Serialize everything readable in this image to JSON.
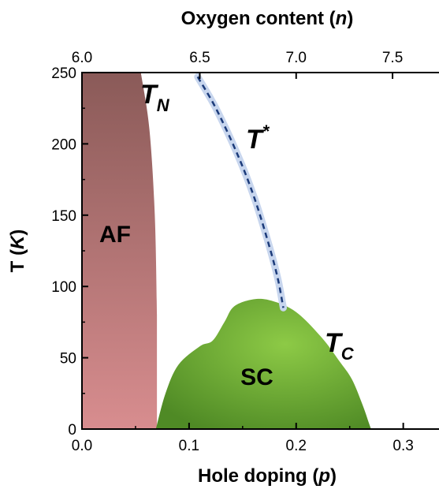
{
  "chart_data": {
    "type": "area",
    "xlabel": "Hole doping (p)",
    "x2label": "Oxygen content (n)",
    "ylabel": "T (K)",
    "xlim": [
      0.0,
      0.34
    ],
    "ylim": [
      0,
      250
    ],
    "x_ticks": [
      0.0,
      0.1,
      0.2,
      0.3
    ],
    "x_tick_labels": [
      "0.0",
      "0.1",
      "0.2",
      "0.3"
    ],
    "x2_ticks": [
      6.0,
      6.5,
      7.0,
      7.5
    ],
    "x2_tick_labels": [
      "6.0",
      "6.5",
      "7.0",
      "7.5"
    ],
    "x2_to_x": [
      [
        6.0,
        0.0
      ],
      [
        6.5,
        0.11
      ],
      [
        7.0,
        0.2
      ],
      [
        7.5,
        0.29
      ]
    ],
    "y_ticks": [
      0,
      50,
      100,
      150,
      200,
      250
    ],
    "y_tick_labels": [
      "0",
      "50",
      "100",
      "150",
      "200",
      "250"
    ],
    "grid": false,
    "regions": [
      {
        "name": "AF",
        "color_top": "#8a5a58",
        "color_bottom": "#d88d8f",
        "boundary": [
          [
            0.0,
            250
          ],
          [
            0.055,
            250
          ],
          [
            0.063,
            210
          ],
          [
            0.068,
            150
          ],
          [
            0.07,
            80
          ],
          [
            0.07,
            0
          ],
          [
            0.0,
            0
          ]
        ]
      },
      {
        "name": "SC",
        "color_light": "#8dca46",
        "color_dark": "#4f8a25",
        "boundary": [
          [
            0.069,
            0
          ],
          [
            0.078,
            25
          ],
          [
            0.09,
            45
          ],
          [
            0.11,
            58
          ],
          [
            0.122,
            62
          ],
          [
            0.133,
            75
          ],
          [
            0.142,
            86
          ],
          [
            0.16,
            91
          ],
          [
            0.177,
            90
          ],
          [
            0.2,
            82
          ],
          [
            0.224,
            64
          ],
          [
            0.24,
            48
          ],
          [
            0.252,
            35
          ],
          [
            0.262,
            17
          ],
          [
            0.268,
            4
          ],
          [
            0.27,
            0
          ]
        ]
      }
    ],
    "curves": [
      {
        "name": "T*",
        "style": "dashed",
        "color": "#1c3b7a",
        "points": [
          [
            0.108,
            247
          ],
          [
            0.125,
            225
          ],
          [
            0.145,
            193
          ],
          [
            0.161,
            162
          ],
          [
            0.175,
            128
          ],
          [
            0.183,
            105
          ],
          [
            0.188,
            85
          ]
        ]
      }
    ],
    "labels": {
      "AF": "AF",
      "SC": "SC",
      "TN": "T",
      "TN_sub": "N",
      "Tstar": "T",
      "Tstar_sup": "*",
      "Tc": "T",
      "Tc_sub": "C"
    },
    "colors": {
      "axis": "#000000",
      "Tstar_glow": "#c8d6ee"
    }
  }
}
